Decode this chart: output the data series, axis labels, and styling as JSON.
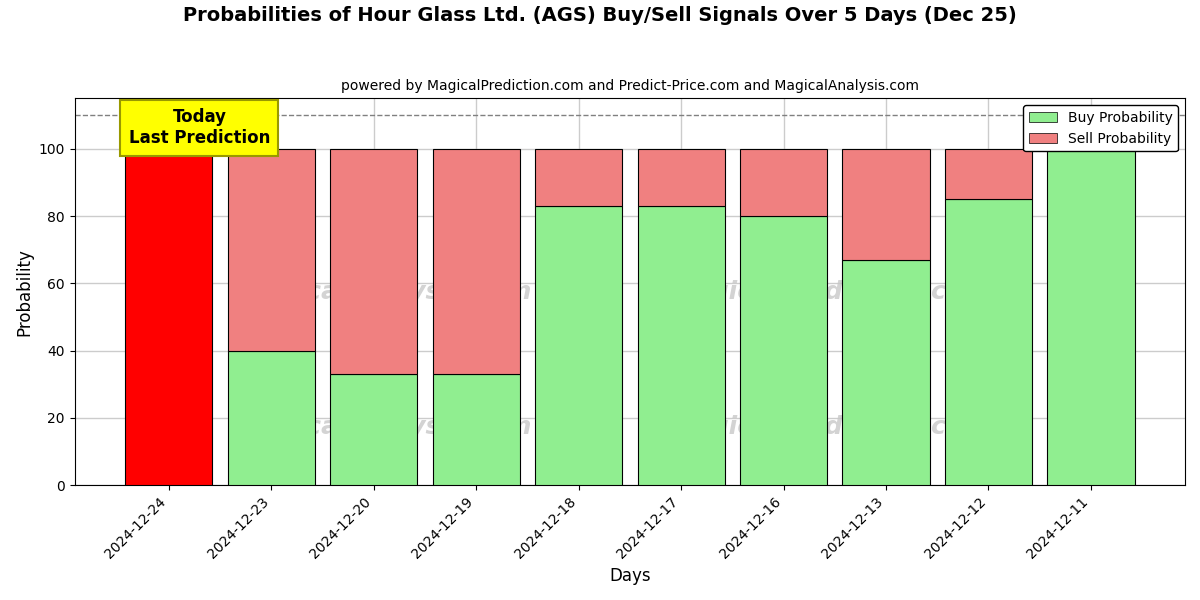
{
  "title": "Probabilities of Hour Glass Ltd. (AGS) Buy/Sell Signals Over 5 Days (Dec 25)",
  "subtitle": "powered by MagicalPrediction.com and Predict-Price.com and MagicalAnalysis.com",
  "xlabel": "Days",
  "ylabel": "Probability",
  "days": [
    "2024-12-24",
    "2024-12-23",
    "2024-12-20",
    "2024-12-19",
    "2024-12-18",
    "2024-12-17",
    "2024-12-16",
    "2024-12-13",
    "2024-12-12",
    "2024-12-11"
  ],
  "buy_probs": [
    0,
    40,
    33,
    33,
    83,
    83,
    80,
    67,
    85,
    100
  ],
  "sell_probs": [
    100,
    60,
    67,
    67,
    17,
    17,
    20,
    33,
    15,
    0
  ],
  "buy_color": "#90EE90",
  "sell_color": "#F08080",
  "first_bar_color": "#FF0000",
  "today_box_color": "#FFFF00",
  "today_box_text": "Today\nLast Prediction",
  "legend_buy_label": "Buy Probability",
  "legend_sell_label": "Sell Probability",
  "ylim": [
    0,
    115
  ],
  "dashed_line_y": 110,
  "figsize": [
    12,
    6
  ],
  "dpi": 100,
  "bar_width": 0.85,
  "bg_color": "#FFFFFF",
  "grid_color": "#CCCCCC"
}
